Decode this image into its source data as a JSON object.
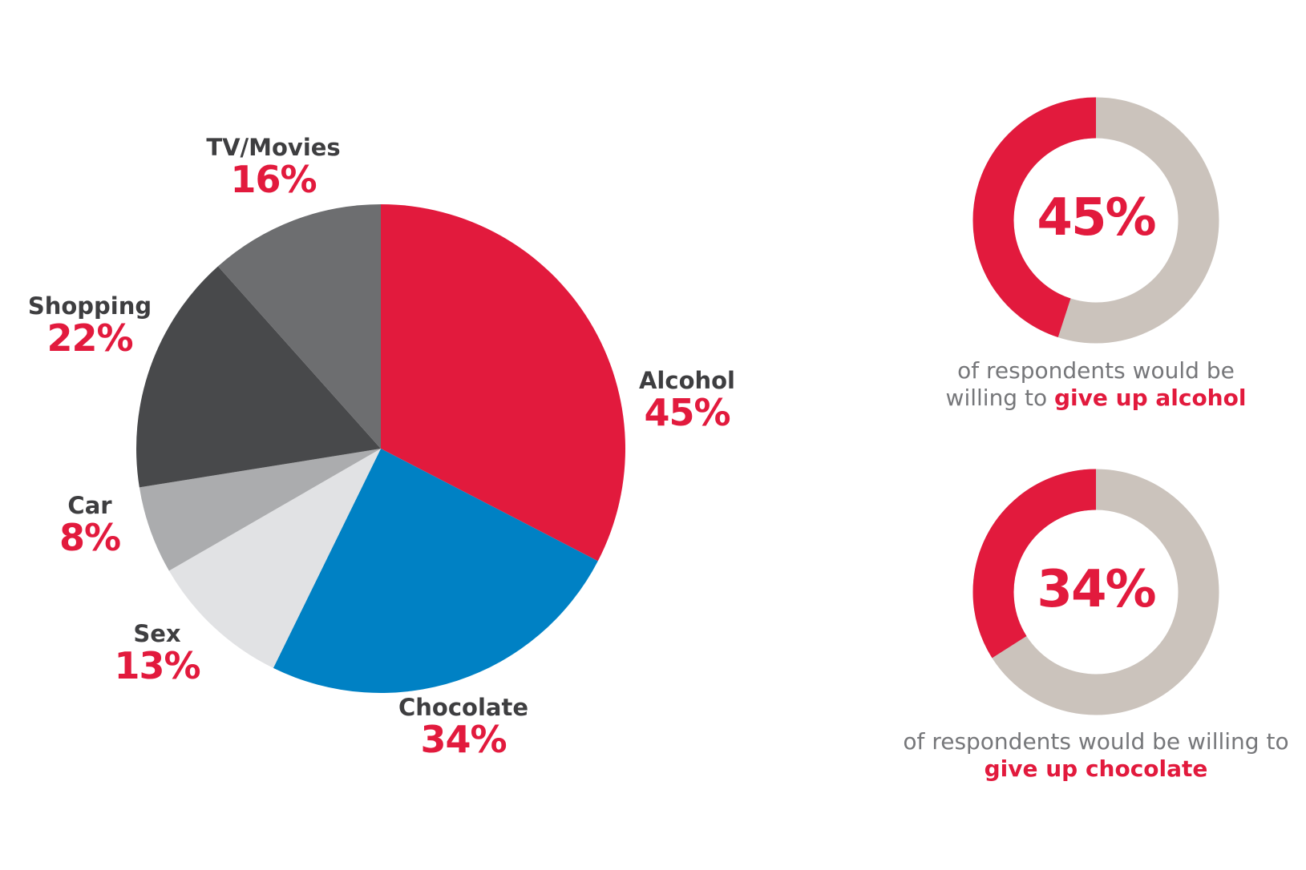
{
  "chart_data": [
    {
      "type": "pie",
      "title": "",
      "categories": [
        "Alcohol",
        "Chocolate",
        "Sex",
        "Car",
        "Shopping",
        "TV/Movies"
      ],
      "values": [
        45,
        34,
        13,
        8,
        22,
        16
      ],
      "value_labels": [
        "45%",
        "34%",
        "13%",
        "8%",
        "22%",
        "16%"
      ],
      "colors": [
        "#e21a3d",
        "#0081c4",
        "#e1e2e4",
        "#abacae",
        "#48494b",
        "#6d6e70"
      ],
      "label_name_color": "#3e3e40",
      "label_value_color": "#e21a3d",
      "start_angle_deg": 0,
      "direction": "clockwise"
    },
    {
      "type": "pie",
      "subtype": "donut",
      "categories": [
        "give up alcohol",
        "rest"
      ],
      "values": [
        45,
        55
      ],
      "center_label": "45%",
      "colors": [
        "#e21a3d",
        "#cbc3bc"
      ],
      "caption": {
        "line1": "of respondents would be",
        "line2_prefix": "willing to ",
        "line2_emphasis": "give up alcohol"
      }
    },
    {
      "type": "pie",
      "subtype": "donut",
      "categories": [
        "give up chocolate",
        "rest"
      ],
      "values": [
        34,
        66
      ],
      "center_label": "34%",
      "colors": [
        "#e21a3d",
        "#cbc3bc"
      ],
      "caption": {
        "line1": "of respondents would be willing to",
        "line2_prefix": "",
        "line2_emphasis": "give up chocolate"
      }
    }
  ]
}
